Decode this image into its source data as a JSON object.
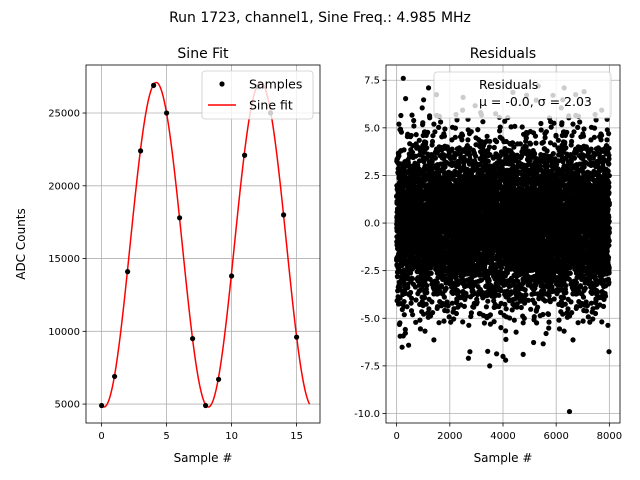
{
  "suptitle": "Run 1723, channel1, Sine Freq.: 4.985 MHz",
  "chart_data": [
    {
      "type": "scatter+line",
      "title": "Sine Fit",
      "xlabel": "Sample #",
      "ylabel": "ADC Counts",
      "xlim": [
        -1.2,
        16.8
      ],
      "ylim": [
        3700,
        28300
      ],
      "xticks": [
        0,
        5,
        10,
        15
      ],
      "yticks": [
        5000,
        10000,
        15000,
        20000,
        25000
      ],
      "grid": true,
      "legend_position": "top-right",
      "legend": [
        "Samples",
        "Sine fit"
      ],
      "samples": {
        "x": [
          0,
          1,
          2,
          3,
          4,
          5,
          6,
          7,
          8,
          9,
          10,
          11,
          12,
          13,
          14,
          15
        ],
        "y": [
          4900,
          6900,
          14100,
          22400,
          26900,
          25000,
          17800,
          9500,
          4900,
          6700,
          13800,
          22100,
          26800,
          25000,
          18000,
          9600
        ]
      },
      "sine_fit": {
        "offset": 15950,
        "amplitude": 11150,
        "period": 8.025,
        "phase_sample": 4.2,
        "x_range": [
          0,
          16
        ]
      }
    },
    {
      "type": "scatter",
      "title": "Residuals",
      "xlabel": "Sample #",
      "ylabel": "",
      "xlim": [
        -400,
        8400
      ],
      "ylim": [
        -10.5,
        8.3
      ],
      "xticks": [
        0,
        2000,
        4000,
        6000,
        8000
      ],
      "yticks": [
        -10.0,
        -7.5,
        -5.0,
        -2.5,
        0.0,
        2.5,
        5.0,
        7.5
      ],
      "grid": true,
      "legend_position": "top-right",
      "legend": [
        "Residuals",
        "μ = -0.0, σ = 2.03"
      ],
      "n_points": 8000,
      "mean": -0.0,
      "sigma": 2.03,
      "outliers": [
        {
          "x": 250,
          "y": 7.6
        },
        {
          "x": 6500,
          "y": -9.9
        },
        {
          "x": 3500,
          "y": -7.5
        },
        {
          "x": 2700,
          "y": -7.1
        },
        {
          "x": 4100,
          "y": -7.2
        },
        {
          "x": 1200,
          "y": 7.1
        },
        {
          "x": 7050,
          "y": 6.9
        },
        {
          "x": 6300,
          "y": 7.1
        },
        {
          "x": 4000,
          "y": -7.0
        },
        {
          "x": 2500,
          "y": 6.6
        }
      ]
    }
  ]
}
